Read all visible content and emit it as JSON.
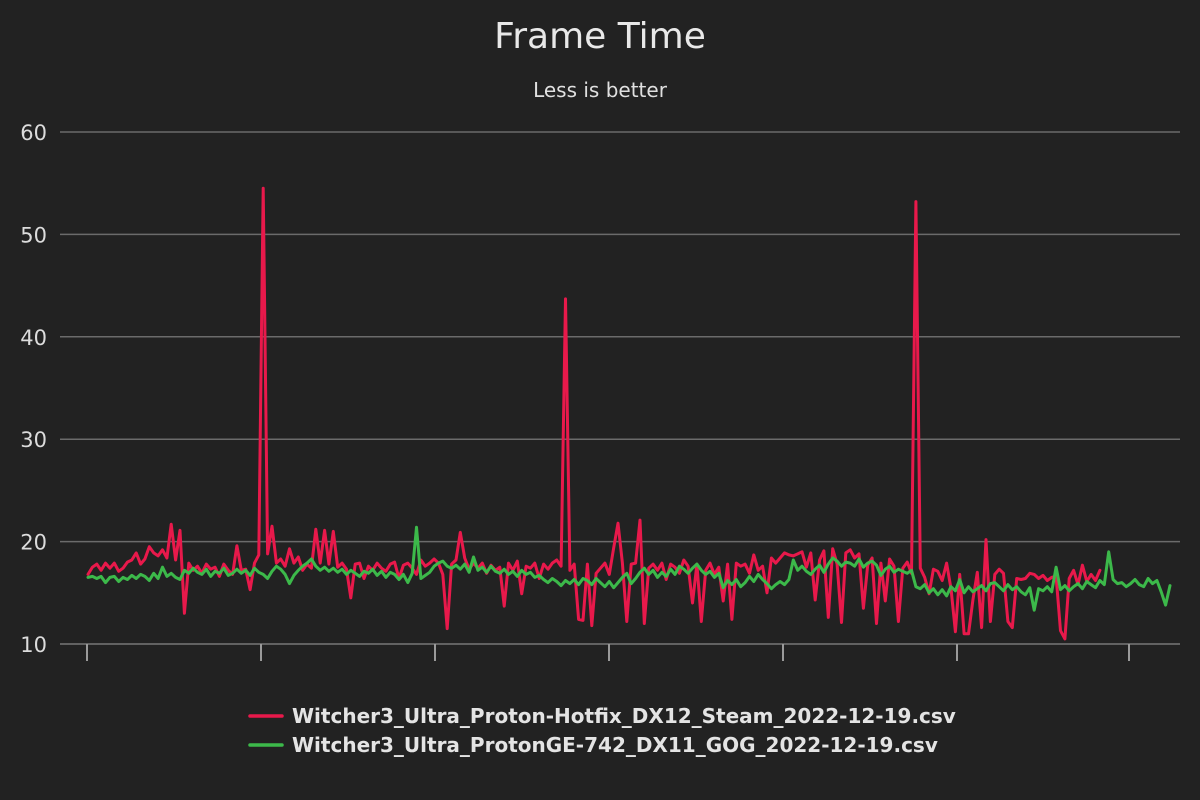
{
  "chart_data": {
    "type": "line",
    "title": "Frame Time",
    "subtitle": "Less is better",
    "xlabel": "",
    "ylabel": "",
    "ylim": [
      10,
      60
    ],
    "y_ticks": [
      "10",
      "20",
      "30",
      "40",
      "50",
      "60"
    ],
    "x_tick_count": 7,
    "grid": "horizontal",
    "legend_position": "bottom-center",
    "series": [
      {
        "name": "Witcher3_Ultra_Proton-Hotfix_DX12_Steam_2022-12-19.csv",
        "color": "#e8194b",
        "values": [
          16.8,
          17.5,
          17.8,
          17.2,
          17.9,
          17.4,
          17.9,
          17.1,
          17.4,
          18.0,
          18.2,
          18.9,
          17.8,
          18.3,
          19.5,
          18.9,
          18.6,
          19.2,
          18.4,
          21.7,
          18.2,
          21.1,
          13.0,
          17.9,
          17.2,
          17.6,
          16.9,
          17.8,
          17.3,
          17.5,
          16.6,
          17.8,
          17.2,
          16.8,
          19.6,
          17.2,
          17.3,
          15.3,
          17.9,
          18.7,
          54.5,
          18.8,
          21.5,
          17.9,
          18.3,
          17.6,
          19.3,
          17.9,
          18.5,
          17.2,
          17.8,
          17.4,
          21.2,
          17.9,
          21.1,
          17.8,
          21.0,
          17.5,
          17.9,
          17.3,
          14.5,
          17.8,
          17.9,
          16.4,
          17.6,
          17.2,
          17.9,
          17.4,
          17.1,
          17.8,
          18.0,
          16.4,
          17.7,
          17.9,
          17.4,
          16.8,
          18.2,
          17.6,
          17.9,
          18.3,
          17.9,
          16.8,
          11.5,
          17.8,
          18.2,
          20.9,
          18.4,
          17.3,
          17.9,
          17.4,
          17.9,
          16.9,
          17.7,
          17.2,
          17.5,
          13.7,
          17.9,
          17.2,
          18.1,
          14.9,
          17.6,
          17.4,
          17.9,
          16.4,
          17.8,
          17.3,
          17.9,
          18.2,
          17.6,
          43.7,
          17.2,
          17.8,
          12.4,
          12.3,
          17.8,
          11.8,
          16.9,
          17.4,
          17.9,
          16.8,
          19.4,
          21.8,
          17.9,
          12.2,
          17.8,
          17.9,
          22.1,
          12.0,
          17.4,
          17.8,
          17.2,
          17.9,
          16.3,
          17.8,
          17.5,
          16.9,
          18.2,
          17.6,
          14.0,
          17.8,
          12.2,
          17.2,
          17.9,
          16.8,
          17.5,
          14.2,
          17.8,
          12.4,
          17.9,
          17.6,
          17.8,
          16.9,
          18.7,
          17.2,
          17.6,
          15.0,
          18.4,
          17.9,
          18.4,
          18.9,
          18.7,
          18.6,
          18.8,
          19.0,
          17.5,
          18.9,
          14.3,
          18.2,
          19.1,
          12.6,
          19.3,
          17.8,
          12.1,
          18.9,
          19.2,
          18.4,
          18.8,
          13.5,
          17.7,
          18.4,
          12.0,
          17.9,
          14.2,
          18.3,
          17.6,
          12.2,
          17.4,
          18.0,
          16.9,
          53.2,
          17.4,
          16.5,
          14.9,
          17.3,
          17.1,
          16.2,
          17.9,
          15.4,
          11.2,
          16.8,
          11.0,
          11.0,
          14.3,
          17.0,
          11.6,
          20.2,
          12.2,
          16.8,
          17.3,
          16.9,
          12.2,
          11.6,
          16.4,
          16.3,
          16.4,
          16.9,
          16.8,
          16.4,
          16.7,
          16.2,
          16.5,
          16.6,
          11.3,
          10.5,
          16.4,
          17.2,
          15.8,
          17.7,
          16.1,
          16.8,
          16.2,
          17.2
        ]
      },
      {
        "name": "Witcher3_Ultra_ProtonGE-742_DX11_GOG_2022-12-19.csv",
        "color": "#3cb94a",
        "values": [
          16.5,
          16.6,
          16.4,
          16.6,
          16.0,
          16.5,
          16.6,
          16.1,
          16.5,
          16.3,
          16.7,
          16.4,
          16.8,
          16.6,
          16.2,
          16.9,
          16.4,
          17.5,
          16.6,
          16.9,
          16.5,
          16.3,
          17.2,
          16.9,
          17.4,
          17.0,
          16.8,
          17.3,
          16.6,
          17.1,
          16.9,
          17.4,
          16.7,
          16.9,
          17.3,
          16.9,
          17.2,
          16.7,
          17.4,
          17.0,
          16.8,
          16.4,
          17.1,
          17.6,
          17.3,
          16.8,
          15.9,
          16.7,
          17.2,
          17.6,
          17.9,
          18.3,
          17.6,
          17.2,
          17.5,
          17.1,
          17.4,
          17.0,
          17.3,
          16.8,
          17.2,
          16.9,
          16.6,
          17.1,
          16.9,
          17.3,
          16.7,
          17.1,
          16.5,
          17.0,
          16.8,
          16.3,
          16.8,
          16.0,
          16.9,
          21.4,
          16.4,
          16.7,
          17.0,
          17.6,
          17.9,
          18.1,
          17.6,
          17.4,
          17.7,
          17.3,
          17.8,
          17.0,
          18.5,
          17.2,
          17.5,
          17.0,
          17.6,
          17.1,
          16.9,
          17.3,
          16.8,
          17.1,
          16.6,
          17.2,
          16.8,
          17.0,
          16.5,
          16.7,
          16.3,
          16.0,
          16.4,
          16.1,
          15.7,
          16.2,
          15.9,
          16.3,
          15.8,
          16.4,
          16.2,
          15.8,
          16.4,
          16.0,
          15.6,
          16.1,
          15.5,
          16.0,
          16.5,
          16.9,
          15.9,
          16.4,
          17.0,
          17.4,
          16.8,
          17.2,
          16.5,
          17.0,
          16.6,
          17.3,
          16.8,
          17.6,
          17.3,
          16.9,
          17.4,
          17.8,
          17.2,
          16.8,
          17.1,
          16.5,
          16.9,
          15.5,
          16.2,
          15.8,
          16.3,
          15.6,
          16.0,
          16.6,
          16.1,
          16.8,
          16.3,
          15.9,
          15.4,
          15.8,
          16.1,
          15.8,
          16.3,
          18.2,
          17.2,
          17.6,
          17.1,
          16.8,
          17.3,
          17.7,
          17.0,
          17.8,
          18.4,
          18.1,
          17.6,
          18.0,
          17.9,
          17.6,
          18.3,
          17.5,
          17.9,
          18.1,
          17.7,
          16.7,
          17.3,
          17.6,
          17.0,
          17.3,
          17.1,
          16.9,
          17.2,
          15.6,
          15.4,
          15.8,
          15.0,
          15.4,
          14.8,
          15.3,
          14.7,
          15.6,
          15.2,
          16.3,
          15.0,
          15.6,
          15.1,
          15.4,
          15.7,
          15.2,
          15.9,
          16.0,
          15.6,
          15.2,
          15.8,
          15.3,
          15.6,
          15.1,
          14.8,
          15.5,
          13.3,
          15.4,
          15.2,
          15.6,
          15.1,
          17.5,
          15.3,
          15.7,
          15.2,
          15.6,
          15.9,
          15.4,
          16.1,
          15.8,
          15.5,
          16.2,
          15.8,
          19.0,
          16.3,
          15.9,
          16.0,
          15.6,
          15.9,
          16.3,
          15.8,
          15.6,
          16.4,
          15.9,
          16.2,
          15.1,
          13.8,
          15.7
        ]
      }
    ]
  }
}
